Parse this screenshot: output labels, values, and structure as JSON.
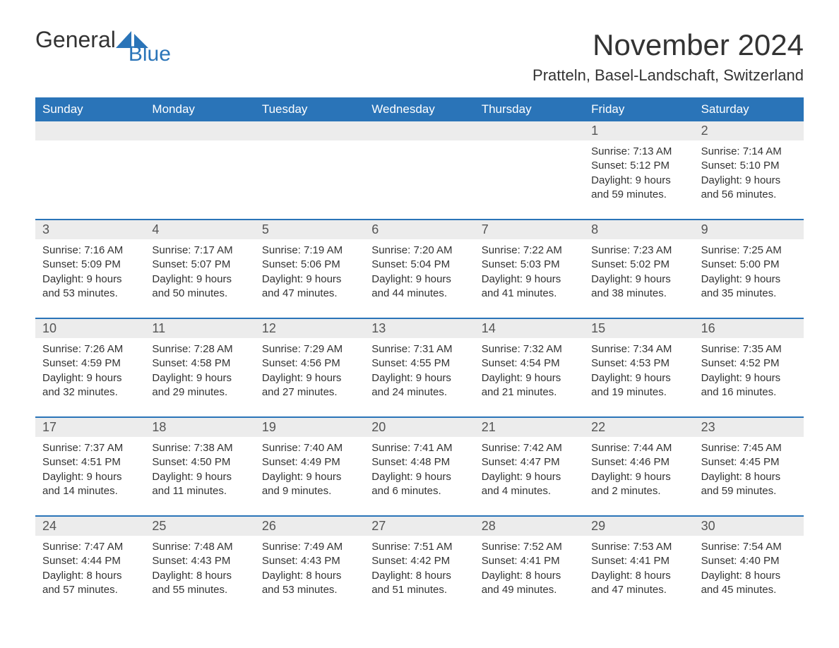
{
  "logo": {
    "general": "General",
    "blue": "Blue"
  },
  "title": "November 2024",
  "subtitle": "Pratteln, Basel-Landschaft, Switzerland",
  "colors": {
    "accent": "#2a74b8",
    "daynum_bg": "#ececec",
    "text": "#333333",
    "background": "#ffffff"
  },
  "weekdays": [
    "Sunday",
    "Monday",
    "Tuesday",
    "Wednesday",
    "Thursday",
    "Friday",
    "Saturday"
  ],
  "weeks": [
    {
      "days": [
        {
          "num": "",
          "lines": []
        },
        {
          "num": "",
          "lines": []
        },
        {
          "num": "",
          "lines": []
        },
        {
          "num": "",
          "lines": []
        },
        {
          "num": "",
          "lines": []
        },
        {
          "num": "1",
          "lines": [
            "Sunrise: 7:13 AM",
            "Sunset: 5:12 PM",
            "Daylight: 9 hours",
            "and 59 minutes."
          ]
        },
        {
          "num": "2",
          "lines": [
            "Sunrise: 7:14 AM",
            "Sunset: 5:10 PM",
            "Daylight: 9 hours",
            "and 56 minutes."
          ]
        }
      ]
    },
    {
      "days": [
        {
          "num": "3",
          "lines": [
            "Sunrise: 7:16 AM",
            "Sunset: 5:09 PM",
            "Daylight: 9 hours",
            "and 53 minutes."
          ]
        },
        {
          "num": "4",
          "lines": [
            "Sunrise: 7:17 AM",
            "Sunset: 5:07 PM",
            "Daylight: 9 hours",
            "and 50 minutes."
          ]
        },
        {
          "num": "5",
          "lines": [
            "Sunrise: 7:19 AM",
            "Sunset: 5:06 PM",
            "Daylight: 9 hours",
            "and 47 minutes."
          ]
        },
        {
          "num": "6",
          "lines": [
            "Sunrise: 7:20 AM",
            "Sunset: 5:04 PM",
            "Daylight: 9 hours",
            "and 44 minutes."
          ]
        },
        {
          "num": "7",
          "lines": [
            "Sunrise: 7:22 AM",
            "Sunset: 5:03 PM",
            "Daylight: 9 hours",
            "and 41 minutes."
          ]
        },
        {
          "num": "8",
          "lines": [
            "Sunrise: 7:23 AM",
            "Sunset: 5:02 PM",
            "Daylight: 9 hours",
            "and 38 minutes."
          ]
        },
        {
          "num": "9",
          "lines": [
            "Sunrise: 7:25 AM",
            "Sunset: 5:00 PM",
            "Daylight: 9 hours",
            "and 35 minutes."
          ]
        }
      ]
    },
    {
      "days": [
        {
          "num": "10",
          "lines": [
            "Sunrise: 7:26 AM",
            "Sunset: 4:59 PM",
            "Daylight: 9 hours",
            "and 32 minutes."
          ]
        },
        {
          "num": "11",
          "lines": [
            "Sunrise: 7:28 AM",
            "Sunset: 4:58 PM",
            "Daylight: 9 hours",
            "and 29 minutes."
          ]
        },
        {
          "num": "12",
          "lines": [
            "Sunrise: 7:29 AM",
            "Sunset: 4:56 PM",
            "Daylight: 9 hours",
            "and 27 minutes."
          ]
        },
        {
          "num": "13",
          "lines": [
            "Sunrise: 7:31 AM",
            "Sunset: 4:55 PM",
            "Daylight: 9 hours",
            "and 24 minutes."
          ]
        },
        {
          "num": "14",
          "lines": [
            "Sunrise: 7:32 AM",
            "Sunset: 4:54 PM",
            "Daylight: 9 hours",
            "and 21 minutes."
          ]
        },
        {
          "num": "15",
          "lines": [
            "Sunrise: 7:34 AM",
            "Sunset: 4:53 PM",
            "Daylight: 9 hours",
            "and 19 minutes."
          ]
        },
        {
          "num": "16",
          "lines": [
            "Sunrise: 7:35 AM",
            "Sunset: 4:52 PM",
            "Daylight: 9 hours",
            "and 16 minutes."
          ]
        }
      ]
    },
    {
      "days": [
        {
          "num": "17",
          "lines": [
            "Sunrise: 7:37 AM",
            "Sunset: 4:51 PM",
            "Daylight: 9 hours",
            "and 14 minutes."
          ]
        },
        {
          "num": "18",
          "lines": [
            "Sunrise: 7:38 AM",
            "Sunset: 4:50 PM",
            "Daylight: 9 hours",
            "and 11 minutes."
          ]
        },
        {
          "num": "19",
          "lines": [
            "Sunrise: 7:40 AM",
            "Sunset: 4:49 PM",
            "Daylight: 9 hours",
            "and 9 minutes."
          ]
        },
        {
          "num": "20",
          "lines": [
            "Sunrise: 7:41 AM",
            "Sunset: 4:48 PM",
            "Daylight: 9 hours",
            "and 6 minutes."
          ]
        },
        {
          "num": "21",
          "lines": [
            "Sunrise: 7:42 AM",
            "Sunset: 4:47 PM",
            "Daylight: 9 hours",
            "and 4 minutes."
          ]
        },
        {
          "num": "22",
          "lines": [
            "Sunrise: 7:44 AM",
            "Sunset: 4:46 PM",
            "Daylight: 9 hours",
            "and 2 minutes."
          ]
        },
        {
          "num": "23",
          "lines": [
            "Sunrise: 7:45 AM",
            "Sunset: 4:45 PM",
            "Daylight: 8 hours",
            "and 59 minutes."
          ]
        }
      ]
    },
    {
      "days": [
        {
          "num": "24",
          "lines": [
            "Sunrise: 7:47 AM",
            "Sunset: 4:44 PM",
            "Daylight: 8 hours",
            "and 57 minutes."
          ]
        },
        {
          "num": "25",
          "lines": [
            "Sunrise: 7:48 AM",
            "Sunset: 4:43 PM",
            "Daylight: 8 hours",
            "and 55 minutes."
          ]
        },
        {
          "num": "26",
          "lines": [
            "Sunrise: 7:49 AM",
            "Sunset: 4:43 PM",
            "Daylight: 8 hours",
            "and 53 minutes."
          ]
        },
        {
          "num": "27",
          "lines": [
            "Sunrise: 7:51 AM",
            "Sunset: 4:42 PM",
            "Daylight: 8 hours",
            "and 51 minutes."
          ]
        },
        {
          "num": "28",
          "lines": [
            "Sunrise: 7:52 AM",
            "Sunset: 4:41 PM",
            "Daylight: 8 hours",
            "and 49 minutes."
          ]
        },
        {
          "num": "29",
          "lines": [
            "Sunrise: 7:53 AM",
            "Sunset: 4:41 PM",
            "Daylight: 8 hours",
            "and 47 minutes."
          ]
        },
        {
          "num": "30",
          "lines": [
            "Sunrise: 7:54 AM",
            "Sunset: 4:40 PM",
            "Daylight: 8 hours",
            "and 45 minutes."
          ]
        }
      ]
    }
  ]
}
